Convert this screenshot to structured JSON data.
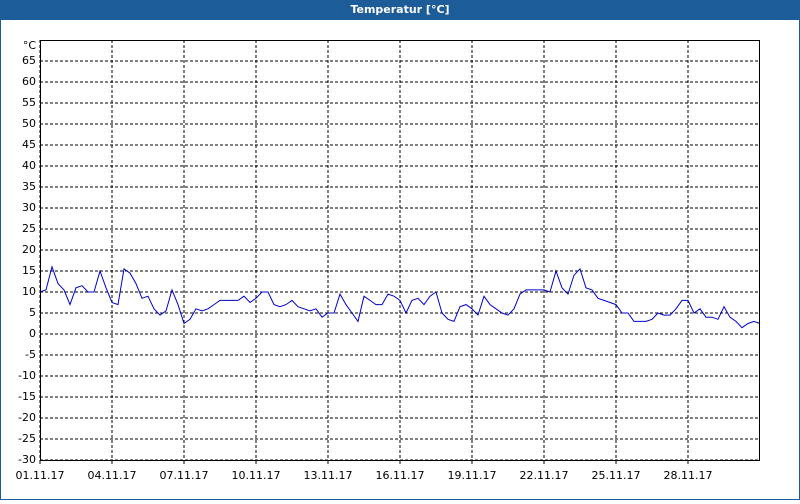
{
  "chart_data": {
    "type": "line",
    "title": "Temperatur [°C]",
    "y_label": "°C",
    "x": [
      1,
      1.25,
      1.5,
      1.75,
      2,
      2.25,
      2.5,
      2.75,
      3,
      3.25,
      3.5,
      3.75,
      4,
      4.25,
      4.5,
      4.75,
      5,
      5.25,
      5.5,
      5.75,
      6,
      6.25,
      6.5,
      6.75,
      7,
      7.25,
      7.5,
      7.75,
      8,
      8.25,
      8.5,
      8.75,
      9,
      9.25,
      9.5,
      9.75,
      10,
      10.25,
      10.5,
      10.75,
      11,
      11.25,
      11.5,
      11.75,
      12,
      12.25,
      12.5,
      12.75,
      13,
      13.25,
      13.5,
      13.75,
      14,
      14.25,
      14.5,
      14.75,
      15,
      15.25,
      15.5,
      15.75,
      16,
      16.25,
      16.5,
      16.75,
      17,
      17.25,
      17.5,
      17.75,
      18,
      18.25,
      18.5,
      18.75,
      19,
      19.25,
      19.5,
      19.75,
      20,
      20.25,
      20.5,
      20.75,
      21,
      21.25,
      21.5,
      21.75,
      22,
      22.25,
      22.5,
      22.75,
      23,
      23.25,
      23.5,
      23.75,
      24,
      24.25,
      24.5,
      24.75,
      25,
      25.25,
      25.5,
      25.75,
      26,
      26.25,
      26.5,
      26.75,
      27,
      27.25,
      27.5,
      27.75,
      28,
      28.25,
      28.5,
      28.75,
      29,
      29.25,
      29.5,
      29.75,
      30,
      30.25,
      30.5,
      30.75,
      31
    ],
    "series": [
      {
        "name": "Temperatur",
        "color": "#0000cc",
        "values": [
          10,
          10.5,
          16,
          12,
          10.5,
          7,
          11,
          11.5,
          10,
          10,
          15,
          11,
          7.5,
          7,
          15.5,
          14.5,
          12,
          8.5,
          9,
          6,
          4.5,
          5.5,
          10.5,
          7,
          2.5,
          3.5,
          6,
          5.5,
          6,
          7,
          8,
          8,
          8,
          8,
          9,
          7.5,
          8.5,
          10,
          10,
          7,
          6.5,
          7,
          8,
          6.5,
          6,
          5.5,
          6,
          4,
          5,
          5,
          9.5,
          7,
          5,
          3,
          9,
          8,
          7,
          7,
          9.5,
          9,
          8,
          5,
          8,
          8.5,
          7,
          9,
          10,
          5,
          3.5,
          3,
          6.5,
          7,
          6,
          4.5,
          9,
          7,
          6,
          5,
          4.5,
          6,
          9.5,
          10.5,
          10.5,
          10.5,
          10.5,
          10,
          15,
          11,
          9.5,
          14,
          15.5,
          11,
          10.5,
          8.5,
          8,
          7.5,
          7,
          5,
          5,
          3,
          3,
          3,
          3.5,
          5,
          4.5,
          4.5,
          6,
          8,
          8,
          5,
          6,
          4,
          4,
          3.5,
          6.5,
          4,
          3,
          1.5,
          2.5,
          3,
          2.5
        ]
      }
    ],
    "xlim": [
      1,
      31
    ],
    "xticks": [
      {
        "value": 1,
        "label": "01.11.17"
      },
      {
        "value": 4,
        "label": "04.11.17"
      },
      {
        "value": 7,
        "label": "07.11.17"
      },
      {
        "value": 10,
        "label": "10.11.17"
      },
      {
        "value": 13,
        "label": "13.11.17"
      },
      {
        "value": 16,
        "label": "16.11.17"
      },
      {
        "value": 19,
        "label": "19.11.17"
      },
      {
        "value": 22,
        "label": "22.11.17"
      },
      {
        "value": 25,
        "label": "25.11.17"
      },
      {
        "value": 28,
        "label": "28.11.17"
      }
    ],
    "ylim": [
      -30,
      70
    ],
    "yticks": [
      -30,
      -25,
      -20,
      -15,
      -10,
      -5,
      0,
      5,
      10,
      15,
      20,
      25,
      30,
      35,
      40,
      45,
      50,
      55,
      60,
      65
    ],
    "grid": true
  }
}
